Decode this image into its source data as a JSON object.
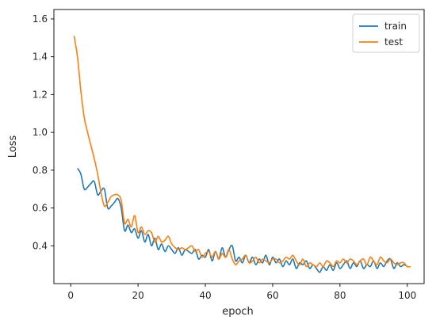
{
  "chart_data": {
    "type": "line",
    "xlabel": "epoch",
    "ylabel": "Loss",
    "xlim": [
      -5,
      105
    ],
    "ylim": [
      0.2,
      1.65
    ],
    "xticks": [
      0,
      20,
      40,
      60,
      80,
      100
    ],
    "yticks": [
      0.4,
      0.6,
      0.8,
      1.0,
      1.2,
      1.4,
      1.6
    ],
    "xtick_labels": [
      "0",
      "20",
      "40",
      "60",
      "80",
      "100"
    ],
    "ytick_labels": [
      "0.4",
      "0.6",
      "0.8",
      "1.0",
      "1.2",
      "1.4",
      "1.6"
    ],
    "grid": false,
    "legend_position": "top-right",
    "series": [
      {
        "name": "train",
        "color": "#1f77b4",
        "x": [
          2,
          3,
          4,
          5,
          6,
          7,
          8,
          9,
          10,
          11,
          12,
          13,
          14,
          15,
          16,
          17,
          18,
          19,
          20,
          21,
          22,
          23,
          24,
          25,
          26,
          27,
          28,
          29,
          30,
          31,
          32,
          33,
          34,
          35,
          36,
          37,
          38,
          39,
          40,
          41,
          42,
          43,
          44,
          45,
          46,
          47,
          48,
          49,
          50,
          51,
          52,
          53,
          54,
          55,
          56,
          57,
          58,
          59,
          60,
          61,
          62,
          63,
          64,
          65,
          66,
          67,
          68,
          69,
          70,
          71,
          72,
          73,
          74,
          75,
          76,
          77,
          78,
          79,
          80,
          81,
          82,
          83,
          84,
          85,
          86,
          87,
          88,
          89,
          90,
          91,
          92,
          93,
          94,
          95,
          96,
          97,
          98,
          99,
          100
        ],
        "y": [
          0.81,
          0.78,
          0.7,
          0.71,
          0.73,
          0.74,
          0.67,
          0.69,
          0.7,
          0.6,
          0.61,
          0.63,
          0.65,
          0.6,
          0.48,
          0.51,
          0.47,
          0.49,
          0.44,
          0.48,
          0.42,
          0.46,
          0.4,
          0.44,
          0.38,
          0.41,
          0.37,
          0.4,
          0.38,
          0.36,
          0.39,
          0.35,
          0.38,
          0.37,
          0.36,
          0.38,
          0.33,
          0.35,
          0.34,
          0.38,
          0.32,
          0.37,
          0.33,
          0.39,
          0.34,
          0.38,
          0.4,
          0.32,
          0.34,
          0.31,
          0.35,
          0.31,
          0.34,
          0.3,
          0.33,
          0.31,
          0.35,
          0.3,
          0.34,
          0.31,
          0.33,
          0.29,
          0.32,
          0.3,
          0.33,
          0.28,
          0.31,
          0.3,
          0.32,
          0.28,
          0.3,
          0.28,
          0.26,
          0.29,
          0.27,
          0.3,
          0.27,
          0.31,
          0.28,
          0.3,
          0.32,
          0.28,
          0.31,
          0.29,
          0.32,
          0.28,
          0.3,
          0.29,
          0.32,
          0.28,
          0.31,
          0.29,
          0.32,
          0.33,
          0.28,
          0.31,
          0.29,
          0.3,
          0.29
        ]
      },
      {
        "name": "test",
        "color": "#ff7f0e",
        "x": [
          1,
          2,
          3,
          4,
          5,
          6,
          7,
          8,
          9,
          10,
          11,
          12,
          13,
          14,
          15,
          16,
          17,
          18,
          19,
          20,
          21,
          22,
          23,
          24,
          25,
          26,
          27,
          28,
          29,
          30,
          31,
          32,
          33,
          34,
          35,
          36,
          37,
          38,
          39,
          40,
          41,
          42,
          43,
          44,
          45,
          46,
          47,
          48,
          49,
          50,
          51,
          52,
          53,
          54,
          55,
          56,
          57,
          58,
          59,
          60,
          61,
          62,
          63,
          64,
          65,
          66,
          67,
          68,
          69,
          70,
          71,
          72,
          73,
          74,
          75,
          76,
          77,
          78,
          79,
          80,
          81,
          82,
          83,
          84,
          85,
          86,
          87,
          88,
          89,
          90,
          91,
          92,
          93,
          94,
          95,
          96,
          97,
          98,
          99,
          100,
          101
        ],
        "y": [
          1.51,
          1.4,
          1.22,
          1.08,
          1.0,
          0.93,
          0.86,
          0.78,
          0.68,
          0.61,
          0.63,
          0.66,
          0.67,
          0.67,
          0.64,
          0.52,
          0.54,
          0.5,
          0.56,
          0.47,
          0.5,
          0.46,
          0.48,
          0.47,
          0.42,
          0.45,
          0.42,
          0.43,
          0.45,
          0.41,
          0.39,
          0.38,
          0.39,
          0.38,
          0.39,
          0.4,
          0.37,
          0.38,
          0.34,
          0.36,
          0.37,
          0.34,
          0.37,
          0.33,
          0.36,
          0.34,
          0.38,
          0.33,
          0.3,
          0.32,
          0.33,
          0.35,
          0.31,
          0.32,
          0.34,
          0.31,
          0.33,
          0.32,
          0.31,
          0.33,
          0.33,
          0.31,
          0.32,
          0.34,
          0.33,
          0.35,
          0.32,
          0.3,
          0.33,
          0.29,
          0.31,
          0.3,
          0.29,
          0.31,
          0.29,
          0.32,
          0.31,
          0.29,
          0.32,
          0.31,
          0.33,
          0.31,
          0.33,
          0.32,
          0.3,
          0.32,
          0.33,
          0.3,
          0.34,
          0.32,
          0.3,
          0.34,
          0.32,
          0.31,
          0.33,
          0.31,
          0.3,
          0.31,
          0.31,
          0.29,
          0.29
        ]
      }
    ]
  }
}
